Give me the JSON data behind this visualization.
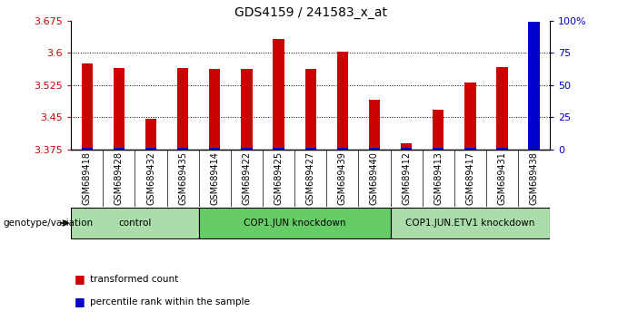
{
  "title": "GDS4159 / 241583_x_at",
  "samples": [
    "GSM689418",
    "GSM689428",
    "GSM689432",
    "GSM689435",
    "GSM689414",
    "GSM689422",
    "GSM689425",
    "GSM689427",
    "GSM689439",
    "GSM689440",
    "GSM689412",
    "GSM689413",
    "GSM689417",
    "GSM689431",
    "GSM689438"
  ],
  "red_values": [
    3.575,
    3.565,
    3.447,
    3.565,
    3.562,
    3.562,
    3.632,
    3.562,
    3.602,
    3.49,
    3.388,
    3.468,
    3.53,
    3.567,
    3.668
  ],
  "blue_pct_values": [
    1,
    1,
    1,
    1,
    1,
    1,
    1,
    1,
    1,
    1,
    1,
    1,
    1,
    1,
    99
  ],
  "groups": [
    {
      "label": "control",
      "start": 0,
      "end": 4
    },
    {
      "label": "COP1.JUN knockdown",
      "start": 4,
      "end": 10
    },
    {
      "label": "COP1.JUN.ETV1 knockdown",
      "start": 10,
      "end": 15
    }
  ],
  "group_colors": [
    "#aaddaa",
    "#88cc88",
    "#aaddaa"
  ],
  "ylim_left": [
    3.375,
    3.675
  ],
  "ylim_right": [
    0,
    100
  ],
  "yticks_left": [
    3.375,
    3.45,
    3.525,
    3.6,
    3.675
  ],
  "yticks_right": [
    0,
    25,
    50,
    75,
    100
  ],
  "bar_color": "#cc0000",
  "blue_bar_color": "#0000cc",
  "bar_width": 0.35,
  "background_color": "#ffffff",
  "grid_color": "#000000",
  "tick_label_color_left": "#cc0000",
  "tick_label_color_right": "#0000cc",
  "genotype_label": "genotype/variation",
  "legend_red": "transformed count",
  "legend_blue": "percentile rank within the sample"
}
